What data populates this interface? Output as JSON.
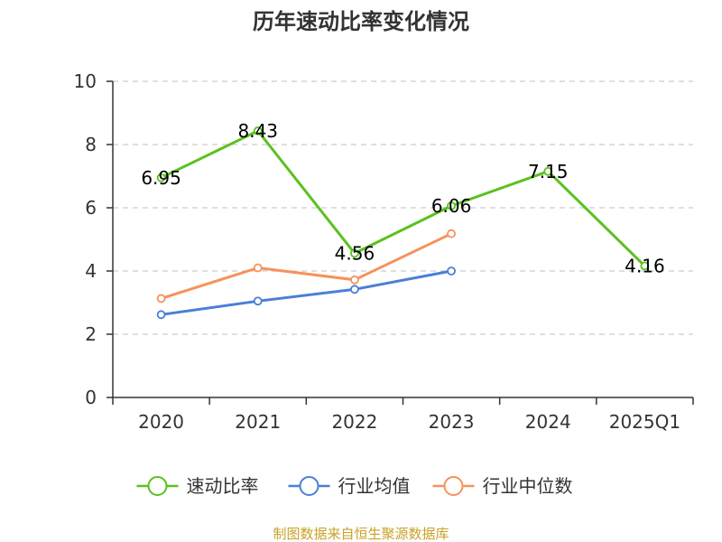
{
  "chart_data": {
    "type": "line",
    "title": "历年速动比率变化情况",
    "categories": [
      "2020",
      "2021",
      "2022",
      "2023",
      "2024",
      "2025Q1"
    ],
    "ylim": [
      0,
      10
    ],
    "yticks": [
      0,
      2,
      4,
      6,
      8,
      10
    ],
    "grid": true,
    "legend_position": "bottom",
    "series": [
      {
        "name": "速动比率",
        "color": "#5bc11f",
        "values": [
          6.95,
          8.43,
          4.56,
          6.06,
          7.15,
          4.16
        ],
        "labels": [
          "6.95",
          "8.43",
          "4.56",
          "6.06",
          "7.15",
          "4.16"
        ],
        "show_labels": true
      },
      {
        "name": "行业均值",
        "color": "#4a7fd6",
        "values": [
          2.62,
          3.05,
          3.42,
          4.0,
          null,
          null
        ],
        "show_labels": false
      },
      {
        "name": "行业中位数",
        "color": "#f7925c",
        "values": [
          3.13,
          4.1,
          3.72,
          5.18,
          null,
          null
        ],
        "show_labels": false
      }
    ]
  },
  "footer": {
    "source": "制图数据来自恒生聚源数据库"
  }
}
